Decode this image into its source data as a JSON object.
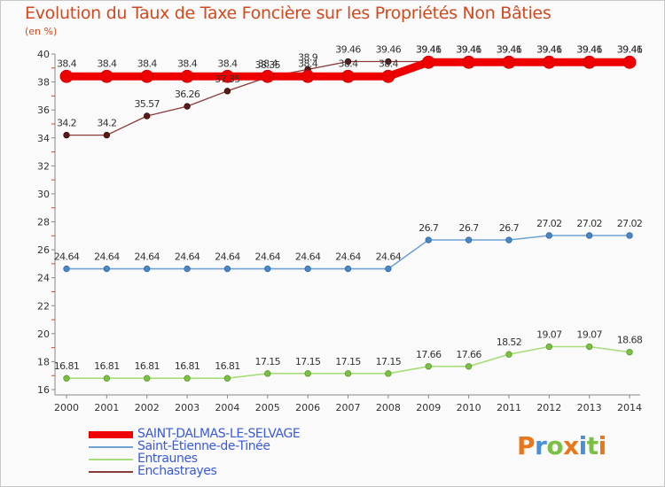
{
  "page": {
    "title": "Evolution du Taux de Taxe Foncière sur les Propriétés Non Bâties",
    "unit": "(en %)"
  },
  "logo": {
    "text": "Proxiti",
    "colors": [
      "#e8761a",
      "#4a90d9",
      "#7bc043",
      "#e8761a",
      "#4a90d9",
      "#7bc043",
      "#e8761a"
    ]
  },
  "chart_data": {
    "type": "line",
    "title": "Evolution du Taux de Taxe Foncière sur les Propriétés Non Bâties",
    "ylabel": "(en %)",
    "xlabel": "",
    "ylim": [
      16,
      40
    ],
    "yticks": [
      16,
      18,
      20,
      22,
      24,
      26,
      28,
      30,
      32,
      34,
      36,
      38,
      40
    ],
    "categories": [
      "2000",
      "2001",
      "2002",
      "2003",
      "2004",
      "2005",
      "2006",
      "2007",
      "2008",
      "2009",
      "2010",
      "2011",
      "2012",
      "2013",
      "2014"
    ],
    "grid": false,
    "legend": "bottom-left",
    "series": [
      {
        "name": "SAINT-DALMAS-LE-SELVAGE",
        "color": "#ee0000",
        "values": [
          38.4,
          38.4,
          38.4,
          38.4,
          38.4,
          38.4,
          38.4,
          38.4,
          38.4,
          39.41,
          39.41,
          39.41,
          39.41,
          39.41,
          39.41
        ],
        "labels": [
          "38.4",
          "38.4",
          "38.4",
          "38.4",
          "38.4",
          "38.4",
          "38.4",
          "38.4",
          "38.4",
          "39.41",
          "39.41",
          "39.41",
          "39.41",
          "39.41",
          "39.41"
        ]
      },
      {
        "name": "Saint-Étienne-de-Tinée",
        "color": "#6fa3d6",
        "values": [
          24.64,
          24.64,
          24.64,
          24.64,
          24.64,
          24.64,
          24.64,
          24.64,
          24.64,
          26.7,
          26.7,
          26.7,
          27.02,
          27.02,
          27.02
        ],
        "labels": [
          "24.64",
          "24.64",
          "24.64",
          "24.64",
          "24.64",
          "24.64",
          "24.64",
          "24.64",
          "24.64",
          "26.7",
          "26.7",
          "26.7",
          "27.02",
          "27.02",
          "27.02"
        ]
      },
      {
        "name": "Entraunes",
        "color": "#a8dd7c",
        "values": [
          16.81,
          16.81,
          16.81,
          16.81,
          16.81,
          17.15,
          17.15,
          17.15,
          17.15,
          17.66,
          17.66,
          18.52,
          19.07,
          19.07,
          18.68
        ],
        "labels": [
          "16.81",
          "16.81",
          "16.81",
          "16.81",
          "16.81",
          "17.15",
          "17.15",
          "17.15",
          "17.15",
          "17.66",
          "17.66",
          "18.52",
          "19.07",
          "19.07",
          "18.68"
        ]
      },
      {
        "name": "Enchastrayes",
        "color": "#8a3a3a",
        "values": [
          34.2,
          34.2,
          35.57,
          36.26,
          37.35,
          38.35,
          38.9,
          39.46,
          39.46,
          39.46,
          39.46,
          39.46,
          39.46,
          39.46,
          39.46
        ],
        "labels": [
          "34.2",
          "34.2",
          "35.57",
          "36.26",
          "37.35",
          "38.35",
          "38.9",
          "39.46",
          "39.46",
          "39.46",
          "39.46",
          "39.46",
          "39.46",
          "39.46",
          "39.46"
        ]
      }
    ]
  }
}
